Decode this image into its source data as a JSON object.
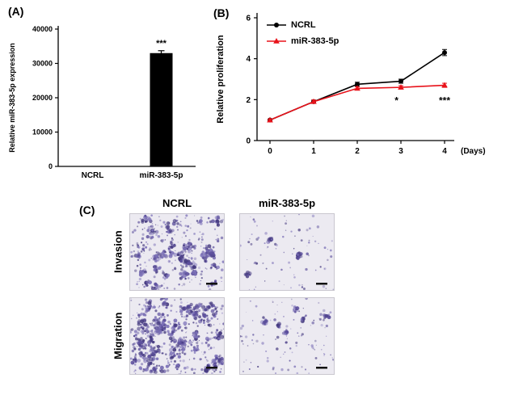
{
  "figure": {
    "panel_a_label": "(A)",
    "panel_b_label": "(B)",
    "panel_c_label": "(C)"
  },
  "chart_data": [
    {
      "id": "panel-a",
      "type": "bar",
      "title": "",
      "ylabel": "Relative miR-383-5p expression",
      "categories": [
        "NCRL",
        "miR-383-5p"
      ],
      "values": [
        120,
        33000
      ],
      "errors": [
        0,
        700
      ],
      "ylim": [
        0,
        40000
      ],
      "yticks": [
        0,
        10000,
        20000,
        30000,
        40000
      ],
      "bar_color": "#000000",
      "significance": [
        {
          "category_index": 1,
          "label": "***"
        }
      ]
    },
    {
      "id": "panel-b",
      "type": "line",
      "title": "",
      "ylabel": "Relative proliferation",
      "xlabel": "(Days)",
      "x": [
        0,
        1,
        2,
        3,
        4
      ],
      "ylim": [
        0,
        6
      ],
      "yticks": [
        0,
        2,
        4,
        6
      ],
      "legend_position": "top-left-inside",
      "series": [
        {
          "name": "NCRL",
          "color": "#000000",
          "marker": "circle",
          "values": [
            1.0,
            1.9,
            2.75,
            2.9,
            4.3
          ],
          "errors": [
            0.05,
            0.08,
            0.1,
            0.1,
            0.15
          ]
        },
        {
          "name": "miR-383-5p",
          "color": "#e8121a",
          "marker": "triangle",
          "values": [
            1.0,
            1.9,
            2.55,
            2.6,
            2.7
          ],
          "errors": [
            0.05,
            0.08,
            0.08,
            0.08,
            0.1
          ]
        }
      ],
      "annotations": [
        {
          "x": 2.9,
          "y": 1.8,
          "label": "*"
        },
        {
          "x": 4,
          "y": 1.8,
          "label": "***"
        }
      ]
    }
  ],
  "panel_c": {
    "col_headers": [
      "NCRL",
      "miR-383-5p"
    ],
    "row_labels": [
      "Invasion",
      "Migration"
    ],
    "stain_color": "#5c4f9c",
    "background_color": "#eceaf1",
    "micrographs": [
      {
        "row": "Invasion",
        "col": "NCRL",
        "density": 200,
        "clusters": 34,
        "cluster_radius": 6
      },
      {
        "row": "Invasion",
        "col": "miR-383-5p",
        "density": 85,
        "clusters": 4,
        "cluster_radius": 3.5
      },
      {
        "row": "Migration",
        "col": "NCRL",
        "density": 240,
        "clusters": 60,
        "cluster_radius": 7
      },
      {
        "row": "Migration",
        "col": "miR-383-5p",
        "density": 110,
        "clusters": 6,
        "cluster_radius": 3.5
      }
    ]
  }
}
